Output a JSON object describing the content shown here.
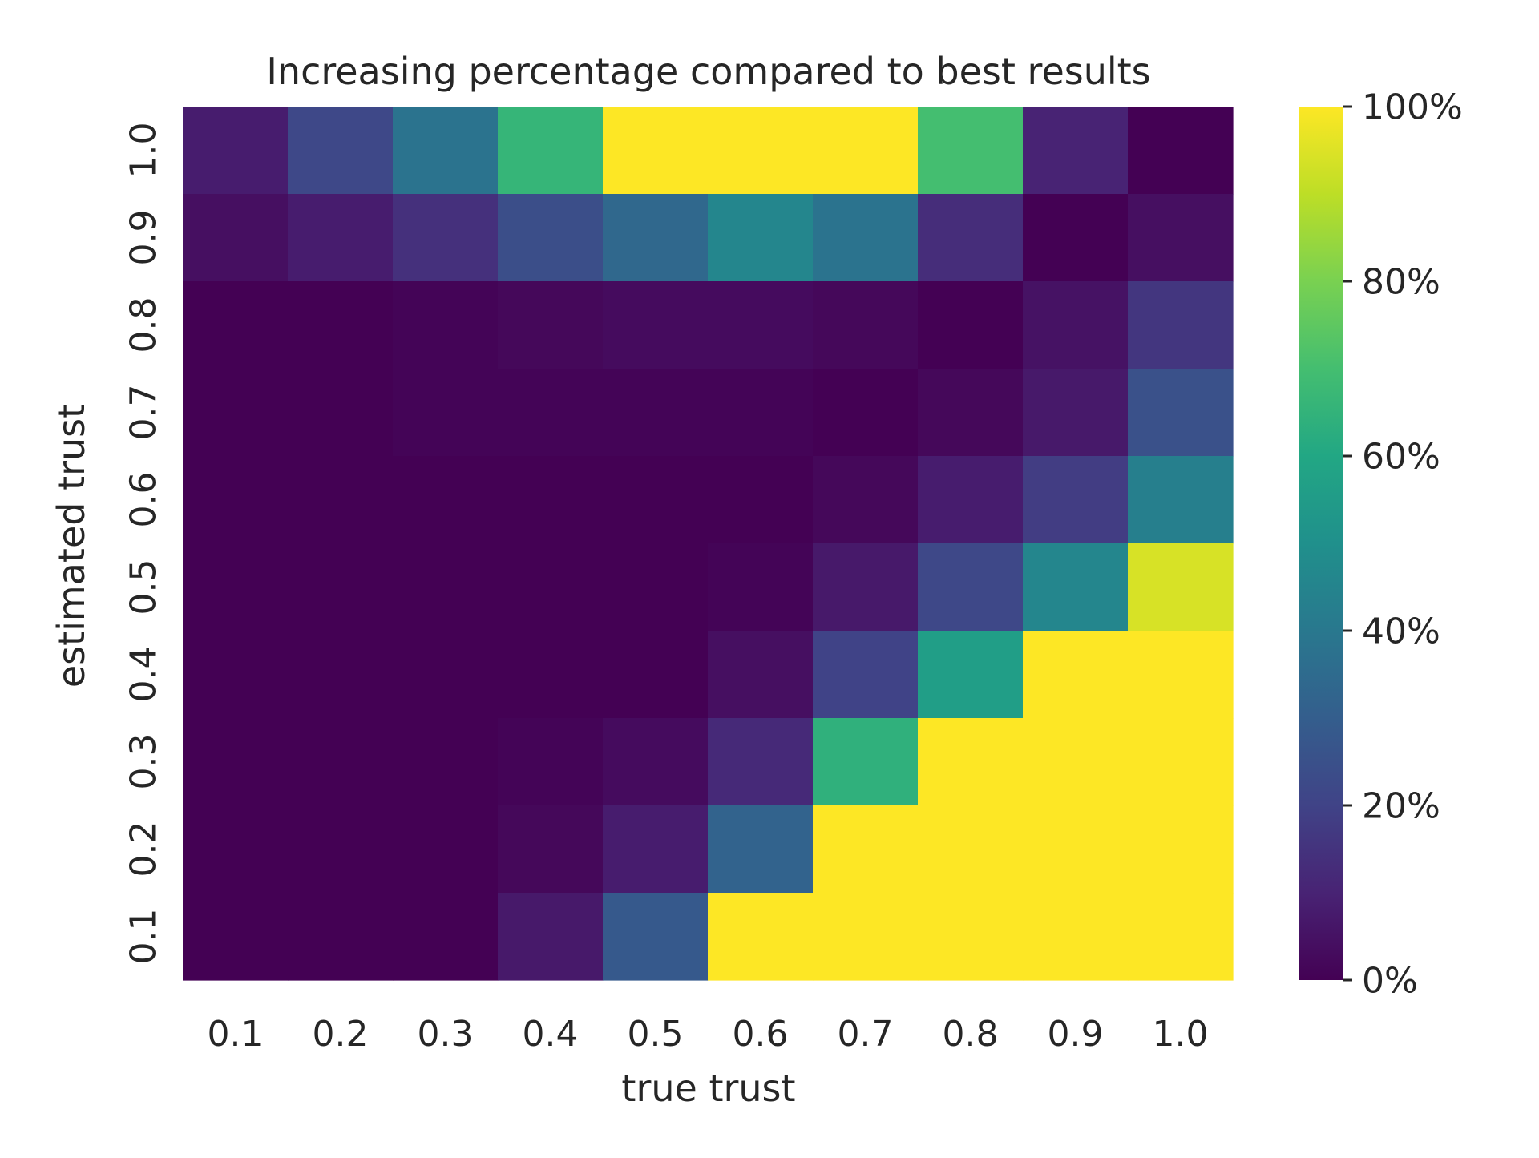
{
  "chart_data": {
    "type": "heatmap",
    "title": "Increasing percentage compared to best results",
    "xlabel": "true trust",
    "ylabel": "estimated trust",
    "x_categories": [
      "0.1",
      "0.2",
      "0.3",
      "0.4",
      "0.5",
      "0.6",
      "0.7",
      "0.8",
      "0.9",
      "1.0"
    ],
    "y_categories": [
      "1.0",
      "0.9",
      "0.8",
      "0.7",
      "0.6",
      "0.5",
      "0.4",
      "0.3",
      "0.2",
      "0.1"
    ],
    "values": [
      [
        8,
        22,
        38,
        66,
        100,
        100,
        100,
        70,
        10,
        0
      ],
      [
        4,
        8,
        14,
        24,
        34,
        46,
        38,
        13,
        0,
        4
      ],
      [
        0,
        0,
        1,
        2,
        3,
        3,
        2,
        0,
        5,
        16
      ],
      [
        0,
        0,
        1,
        1,
        1,
        1,
        0,
        2,
        7,
        25
      ],
      [
        0,
        0,
        0,
        0,
        0,
        0,
        2,
        8,
        18,
        43
      ],
      [
        0,
        0,
        0,
        0,
        0,
        1,
        7,
        22,
        46,
        94
      ],
      [
        0,
        0,
        0,
        0,
        0,
        4,
        20,
        56,
        100,
        100
      ],
      [
        0,
        0,
        0,
        1,
        3,
        12,
        64,
        100,
        100,
        100
      ],
      [
        0,
        0,
        0,
        2,
        8,
        32,
        100,
        100,
        100,
        100
      ],
      [
        0,
        0,
        0,
        7,
        28,
        100,
        100,
        100,
        100,
        100
      ]
    ],
    "value_range": [
      0,
      100
    ],
    "colormap": "viridis",
    "colorbar": {
      "ticks": [
        0,
        20,
        40,
        60,
        80,
        100
      ],
      "tick_labels": [
        "0%",
        "20%",
        "40%",
        "60%",
        "80%",
        "100%"
      ]
    },
    "grid": false
  }
}
